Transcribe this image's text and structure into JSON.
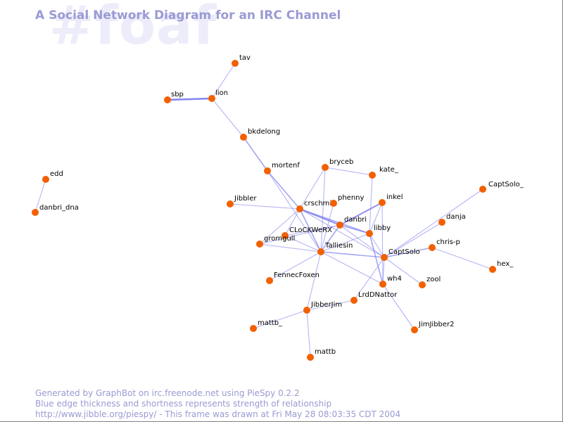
{
  "watermark": "#foaf",
  "title": "A Social Network Diagram for an IRC Channel",
  "footer": {
    "line1": "Generated by GraphBot on irc.freenode.net using PieSpy 0.2.2",
    "line2": "Blue edge thickness and shortness represents strength of relationship",
    "line3": "http://www.jibble.org/piespy/ - This frame was drawn at Fri May 28 08:03:35 CDT 2004"
  },
  "colors": {
    "node": "#f26000",
    "edge": "#8080ee",
    "text": "#9a9ad4",
    "watermark": "#ececfa"
  },
  "graph": {
    "nodes": [
      {
        "id": "tav",
        "label": "tav"
      },
      {
        "id": "lion",
        "label": "lion"
      },
      {
        "id": "sbp",
        "label": "sbp"
      },
      {
        "id": "bkdelong",
        "label": "bkdelong"
      },
      {
        "id": "mortenf",
        "label": "mortenf"
      },
      {
        "id": "bryceb",
        "label": "bryceb"
      },
      {
        "id": "kate_",
        "label": "kate_"
      },
      {
        "id": "CaptSolo_",
        "label": "CaptSolo_"
      },
      {
        "id": "edd",
        "label": "edd"
      },
      {
        "id": "danbri_dna",
        "label": "danbri_dna"
      },
      {
        "id": "Jibbler",
        "label": "Jibbler"
      },
      {
        "id": "crschmi",
        "label": "crschmi"
      },
      {
        "id": "phenny",
        "label": "phenny"
      },
      {
        "id": "inkel",
        "label": "inkel"
      },
      {
        "id": "danja",
        "label": "danja"
      },
      {
        "id": "CLoCKWeRX",
        "label": "CLoCKWeRX"
      },
      {
        "id": "danbri",
        "label": "danbri"
      },
      {
        "id": "libby",
        "label": "libby"
      },
      {
        "id": "gromgull",
        "label": "gromgull"
      },
      {
        "id": "Talliesin",
        "label": "Talliesin"
      },
      {
        "id": "CaptSolo",
        "label": "CaptSolo"
      },
      {
        "id": "chris-p",
        "label": "chris-p"
      },
      {
        "id": "hex_",
        "label": "hex_"
      },
      {
        "id": "FennecFoxen",
        "label": "FennecFoxen"
      },
      {
        "id": "wh4",
        "label": "wh4"
      },
      {
        "id": "zool",
        "label": "zool"
      },
      {
        "id": "LrdDNattor",
        "label": "LrdDNattor"
      },
      {
        "id": "JibberJim",
        "label": "JibberJim"
      },
      {
        "id": "mattb_",
        "label": "mattb_"
      },
      {
        "id": "JimJibber2",
        "label": "JimJibber2"
      },
      {
        "id": "mattb",
        "label": "mattb"
      }
    ],
    "edges": [
      {
        "source": "sbp",
        "target": "lion",
        "weight": 4
      },
      {
        "source": "lion",
        "target": "tav",
        "weight": 1
      },
      {
        "source": "lion",
        "target": "bkdelong",
        "weight": 1
      },
      {
        "source": "edd",
        "target": "danbri_dna",
        "weight": 1
      },
      {
        "source": "bkdelong",
        "target": "mortenf",
        "weight": 2
      },
      {
        "source": "mortenf",
        "target": "crschmi",
        "weight": 2
      },
      {
        "source": "mortenf",
        "target": "Talliesin",
        "weight": 1
      },
      {
        "source": "bryceb",
        "target": "kate_",
        "weight": 1
      },
      {
        "source": "bryceb",
        "target": "crschmi",
        "weight": 1
      },
      {
        "source": "bryceb",
        "target": "Talliesin",
        "weight": 1
      },
      {
        "source": "kate_",
        "target": "libby",
        "weight": 1
      },
      {
        "source": "Jibbler",
        "target": "crschmi",
        "weight": 1
      },
      {
        "source": "crschmi",
        "target": "danbri",
        "weight": 3
      },
      {
        "source": "crschmi",
        "target": "Talliesin",
        "weight": 2
      },
      {
        "source": "crschmi",
        "target": "libby",
        "weight": 2
      },
      {
        "source": "crschmi",
        "target": "CLoCKWeRX",
        "weight": 1
      },
      {
        "source": "crschmi",
        "target": "gromgull",
        "weight": 1
      },
      {
        "source": "crschmi",
        "target": "CaptSolo",
        "weight": 1
      },
      {
        "source": "phenny",
        "target": "Talliesin",
        "weight": 1
      },
      {
        "source": "danbri",
        "target": "inkel",
        "weight": 3
      },
      {
        "source": "danbri",
        "target": "libby",
        "weight": 2
      },
      {
        "source": "danbri",
        "target": "Talliesin",
        "weight": 2
      },
      {
        "source": "danbri",
        "target": "CLoCKWeRX",
        "weight": 1
      },
      {
        "source": "danbri",
        "target": "gromgull",
        "weight": 1
      },
      {
        "source": "danbri",
        "target": "CaptSolo",
        "weight": 1
      },
      {
        "source": "inkel",
        "target": "libby",
        "weight": 1
      },
      {
        "source": "inkel",
        "target": "wh4",
        "weight": 1
      },
      {
        "source": "libby",
        "target": "Talliesin",
        "weight": 1
      },
      {
        "source": "libby",
        "target": "CaptSolo",
        "weight": 1
      },
      {
        "source": "libby",
        "target": "wh4",
        "weight": 2
      },
      {
        "source": "CaptSolo_",
        "target": "CaptSolo",
        "weight": 1
      },
      {
        "source": "danja",
        "target": "CaptSolo",
        "weight": 1
      },
      {
        "source": "CaptSolo",
        "target": "Talliesin",
        "weight": 2
      },
      {
        "source": "CaptSolo",
        "target": "chris-p",
        "weight": 2
      },
      {
        "source": "CaptSolo",
        "target": "wh4",
        "weight": 1
      },
      {
        "source": "CaptSolo",
        "target": "zool",
        "weight": 1
      },
      {
        "source": "CaptSolo",
        "target": "LrdDNattor",
        "weight": 1
      },
      {
        "source": "chris-p",
        "target": "hex_",
        "weight": 1
      },
      {
        "source": "Talliesin",
        "target": "gromgull",
        "weight": 1
      },
      {
        "source": "Talliesin",
        "target": "CLoCKWeRX",
        "weight": 1
      },
      {
        "source": "Talliesin",
        "target": "FennecFoxen",
        "weight": 1
      },
      {
        "source": "Talliesin",
        "target": "JibberJim",
        "weight": 1
      },
      {
        "source": "Talliesin",
        "target": "wh4",
        "weight": 1
      },
      {
        "source": "wh4",
        "target": "JimJibber2",
        "weight": 1
      },
      {
        "source": "LrdDNattor",
        "target": "JibberJim",
        "weight": 1
      },
      {
        "source": "JibberJim",
        "target": "mattb_",
        "weight": 1
      },
      {
        "source": "JibberJim",
        "target": "mattb",
        "weight": 1
      }
    ]
  }
}
